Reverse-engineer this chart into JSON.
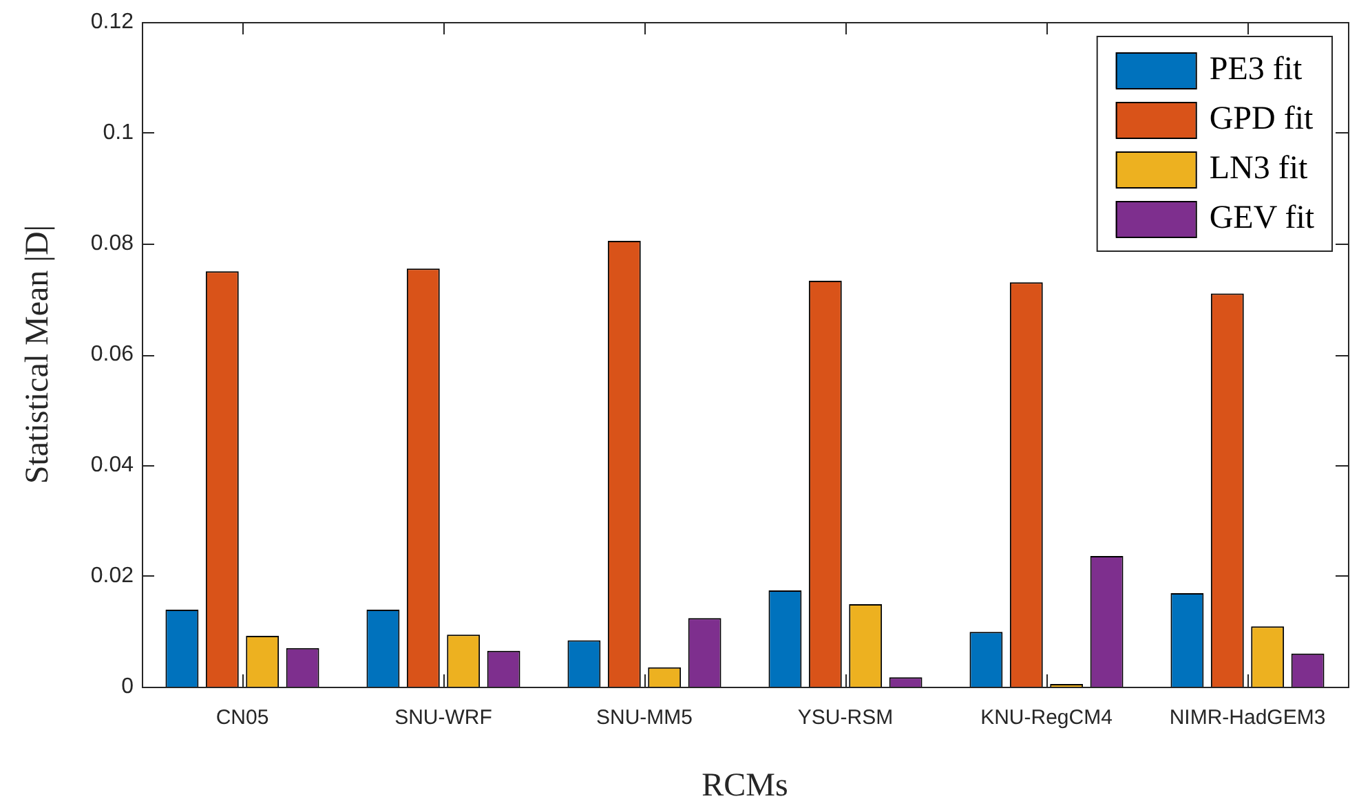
{
  "chart_data": {
    "type": "bar",
    "xlabel": "RCMs",
    "ylabel": "Statistical Mean |D|",
    "categories": [
      "CN05",
      "SNU-WRF",
      "SNU-MM5",
      "YSU-RSM",
      "KNU-RegCM4",
      "NIMR-HadGEM3"
    ],
    "series": [
      {
        "name": "PE3 fit",
        "color": "#0072bd",
        "values": [
          0.0139,
          0.0139,
          0.0084,
          0.0174,
          0.0099,
          0.0169
        ]
      },
      {
        "name": "GPD fit",
        "color": "#d95319",
        "values": [
          0.075,
          0.0755,
          0.0805,
          0.0733,
          0.073,
          0.071
        ]
      },
      {
        "name": "LN3 fit",
        "color": "#edb120",
        "values": [
          0.0092,
          0.0094,
          0.0035,
          0.0149,
          0.0005,
          0.0109
        ]
      },
      {
        "name": "GEV fit",
        "color": "#7e2f8e",
        "values": [
          0.007,
          0.0065,
          0.0124,
          0.0017,
          0.0236,
          0.006
        ]
      }
    ],
    "ylim": [
      0,
      0.12
    ],
    "yticks": [
      0,
      0.02,
      0.04,
      0.06,
      0.08,
      0.1,
      0.12
    ],
    "grid": false,
    "legend": "top right"
  }
}
